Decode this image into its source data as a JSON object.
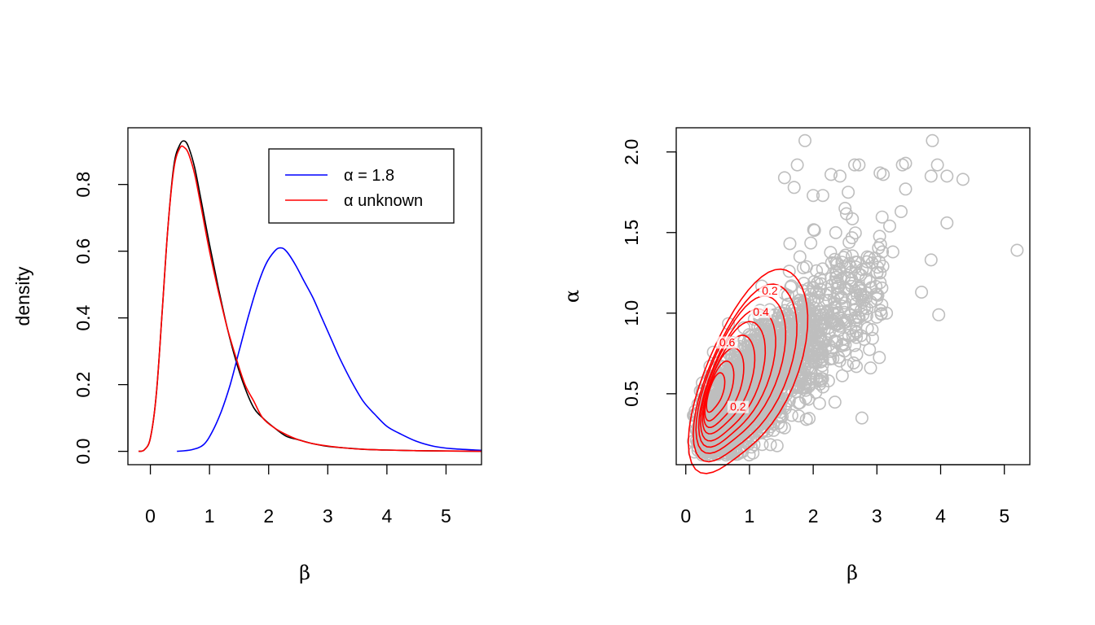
{
  "chart_data": [
    {
      "type": "line",
      "xlabel": "β",
      "ylabel": "density",
      "xlim": [
        -0.38,
        5.6
      ],
      "ylim": [
        -0.04,
        0.97
      ],
      "xticks": [
        "0",
        "1",
        "2",
        "3",
        "4",
        "5"
      ],
      "yticks": [
        "0.0",
        "0.2",
        "0.4",
        "0.6",
        "0.8"
      ],
      "legend_position": "top-right",
      "series": [
        {
          "name": "",
          "color": "#000000",
          "x": [
            -0.2,
            -0.1,
            0.0,
            0.1,
            0.2,
            0.3,
            0.4,
            0.5,
            0.58,
            0.65,
            0.75,
            0.85,
            1.0,
            1.15,
            1.3,
            1.45,
            1.6,
            1.75,
            1.9,
            2.1,
            2.3,
            2.5,
            2.7,
            3.0,
            3.3,
            3.6,
            4.0,
            4.5,
            5.0,
            5.6
          ],
          "y": [
            0.0,
            0.005,
            0.04,
            0.17,
            0.42,
            0.68,
            0.86,
            0.92,
            0.93,
            0.91,
            0.85,
            0.76,
            0.62,
            0.49,
            0.37,
            0.27,
            0.19,
            0.13,
            0.1,
            0.07,
            0.045,
            0.035,
            0.025,
            0.015,
            0.01,
            0.006,
            0.004,
            0.002,
            0.001,
            0.0
          ]
        },
        {
          "name": "α = 1.8",
          "color": "#0000ff",
          "x": [
            0.45,
            0.7,
            0.9,
            1.05,
            1.2,
            1.35,
            1.5,
            1.65,
            1.8,
            1.95,
            2.1,
            2.2,
            2.3,
            2.45,
            2.6,
            2.75,
            2.9,
            3.05,
            3.2,
            3.4,
            3.6,
            3.8,
            4.0,
            4.2,
            4.5,
            4.8,
            5.1,
            5.6
          ],
          "y": [
            0.0,
            0.005,
            0.02,
            0.06,
            0.12,
            0.2,
            0.3,
            0.4,
            0.49,
            0.56,
            0.6,
            0.61,
            0.6,
            0.56,
            0.51,
            0.46,
            0.4,
            0.34,
            0.28,
            0.21,
            0.15,
            0.11,
            0.075,
            0.055,
            0.03,
            0.015,
            0.008,
            0.003
          ]
        },
        {
          "name": "α unknown",
          "color": "#ff0000",
          "x": [
            -0.2,
            -0.1,
            0.0,
            0.1,
            0.2,
            0.3,
            0.4,
            0.5,
            0.58,
            0.65,
            0.75,
            0.85,
            1.0,
            1.15,
            1.3,
            1.45,
            1.6,
            1.75,
            1.9,
            2.1,
            2.3,
            2.5,
            2.7,
            3.0,
            3.3,
            3.6,
            4.0,
            4.5,
            5.0,
            5.6
          ],
          "y": [
            0.0,
            0.005,
            0.04,
            0.17,
            0.42,
            0.68,
            0.85,
            0.91,
            0.91,
            0.89,
            0.83,
            0.74,
            0.6,
            0.48,
            0.37,
            0.28,
            0.2,
            0.15,
            0.1,
            0.07,
            0.05,
            0.035,
            0.025,
            0.016,
            0.01,
            0.006,
            0.004,
            0.002,
            0.001,
            0.0
          ]
        }
      ],
      "legend": [
        {
          "label": "α = 1.8",
          "color": "#0000ff"
        },
        {
          "label": "α unknown",
          "color": "#ff0000"
        }
      ]
    },
    {
      "type": "scatter",
      "xlabel": "β",
      "ylabel": "α",
      "xlim": [
        -0.15,
        5.4
      ],
      "ylim": [
        0.06,
        2.15
      ],
      "xticks": [
        "0",
        "1",
        "2",
        "3",
        "4",
        "5"
      ],
      "yticks": [
        "0.5",
        "1.0",
        "1.5",
        "2.0"
      ],
      "point_color": "#bebebe",
      "contour_color": "#ff0000",
      "outliers": [
        [
          5.2,
          1.39
        ],
        [
          4.35,
          1.83
        ],
        [
          4.1,
          1.85
        ],
        [
          4.1,
          1.56
        ],
        [
          3.95,
          1.92
        ],
        [
          3.87,
          2.07
        ],
        [
          3.85,
          1.85
        ],
        [
          3.85,
          1.33
        ],
        [
          3.97,
          0.99
        ],
        [
          3.7,
          1.13
        ],
        [
          3.45,
          1.93
        ],
        [
          3.4,
          1.92
        ],
        [
          3.45,
          1.77
        ],
        [
          3.38,
          1.63
        ],
        [
          3.1,
          1.86
        ],
        [
          3.05,
          1.87
        ],
        [
          2.72,
          1.92
        ],
        [
          2.65,
          1.92
        ],
        [
          2.55,
          1.75
        ],
        [
          1.87,
          2.07
        ],
        [
          2.42,
          1.85
        ],
        [
          2.28,
          1.86
        ],
        [
          3.2,
          1.54
        ],
        [
          3.25,
          1.38
        ],
        [
          3.15,
          1.0
        ],
        [
          2.9,
          0.66
        ],
        [
          2.75,
          0.86
        ],
        [
          2.1,
          0.44
        ],
        [
          1.75,
          1.92
        ],
        [
          1.7,
          1.78
        ],
        [
          1.55,
          1.84
        ],
        [
          2.15,
          1.73
        ],
        [
          2.0,
          1.73
        ],
        [
          2.5,
          1.65
        ],
        [
          3.05,
          1.25
        ]
      ],
      "contour_labels": [
        {
          "text": "0.2",
          "x": 1.32,
          "y": 1.12
        },
        {
          "text": "0.4",
          "x": 1.18,
          "y": 0.99
        },
        {
          "text": "0.6",
          "x": 0.65,
          "y": 0.8
        },
        {
          "text": "0.2",
          "x": 0.82,
          "y": 0.4
        }
      ],
      "contours": [
        {
          "cx": 1.0,
          "cy": 0.64,
          "rx": 0.98,
          "ry": 0.47,
          "rot": -32
        },
        {
          "cx": 0.95,
          "cy": 0.63,
          "rx": 0.85,
          "ry": 0.41,
          "rot": -32
        },
        {
          "cx": 0.88,
          "cy": 0.62,
          "rx": 0.74,
          "ry": 0.36,
          "rot": -33
        },
        {
          "cx": 0.82,
          "cy": 0.6,
          "rx": 0.64,
          "ry": 0.31,
          "rot": -34
        },
        {
          "cx": 0.75,
          "cy": 0.58,
          "rx": 0.54,
          "ry": 0.27,
          "rot": -35
        },
        {
          "cx": 0.68,
          "cy": 0.56,
          "rx": 0.44,
          "ry": 0.22,
          "rot": -36
        },
        {
          "cx": 0.6,
          "cy": 0.54,
          "rx": 0.34,
          "ry": 0.18,
          "rot": -38
        },
        {
          "cx": 0.53,
          "cy": 0.52,
          "rx": 0.25,
          "ry": 0.13,
          "rot": -40
        },
        {
          "cx": 0.47,
          "cy": 0.51,
          "rx": 0.16,
          "ry": 0.085,
          "rot": -42
        }
      ]
    }
  ]
}
